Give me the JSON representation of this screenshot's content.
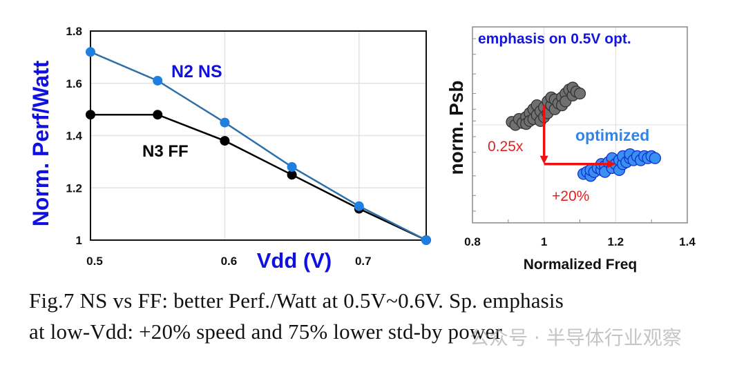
{
  "chart_data": [
    {
      "type": "line",
      "xlabel": "Vdd (V)",
      "ylabel": "Norm. Perf/Watt",
      "xlim": [
        0.5,
        0.75
      ],
      "ylim": [
        1,
        1.8
      ],
      "x_ticks": [
        "0.5",
        "0.6",
        "0.7"
      ],
      "y_ticks": [
        "1",
        "1.2",
        "1.4",
        "1.6",
        "1.8"
      ],
      "grid": true,
      "x": [
        0.5,
        0.55,
        0.6,
        0.65,
        0.7,
        0.75
      ],
      "series": [
        {
          "name": "N2 NS",
          "values": [
            1.72,
            1.61,
            1.45,
            1.28,
            1.13,
            1.0
          ],
          "color": "#1f7fe0",
          "line_color": "#2f6fa8"
        },
        {
          "name": "N3 FF",
          "values": [
            1.48,
            1.48,
            1.38,
            1.25,
            1.12,
            1.0
          ],
          "color": "#000000",
          "line_color": "#000000"
        }
      ],
      "label_colors": {
        "axis": "#1010e0"
      }
    },
    {
      "type": "scatter",
      "xlabel": "Normalized Freq",
      "ylabel": "norm. Psb",
      "xlim": [
        0.8,
        1.4
      ],
      "ylim": [
        0,
        1
      ],
      "x_ticks": [
        "0.8",
        "1",
        "1.2",
        "1.4"
      ],
      "grid": true,
      "title": "emphasis on 0.5V opt.",
      "series": [
        {
          "color": "#707070",
          "points": [
            [
              0.91,
              0.515
            ],
            [
              0.92,
              0.5
            ],
            [
              0.93,
              0.53
            ],
            [
              0.94,
              0.51
            ],
            [
              0.95,
              0.54
            ],
            [
              0.95,
              0.505
            ],
            [
              0.96,
              0.56
            ],
            [
              0.96,
              0.52
            ],
            [
              0.97,
              0.53
            ],
            [
              0.97,
              0.58
            ],
            [
              0.98,
              0.55
            ],
            [
              0.98,
              0.6
            ],
            [
              0.99,
              0.57
            ],
            [
              0.99,
              0.52
            ],
            [
              1.0,
              0.59
            ],
            [
              1.0,
              0.54
            ],
            [
              1.01,
              0.62
            ],
            [
              1.01,
              0.56
            ],
            [
              1.02,
              0.6
            ],
            [
              1.02,
              0.64
            ],
            [
              1.03,
              0.63
            ],
            [
              1.03,
              0.58
            ],
            [
              1.04,
              0.61
            ],
            [
              1.05,
              0.64
            ],
            [
              1.05,
              0.6
            ],
            [
              1.06,
              0.66
            ],
            [
              1.06,
              0.62
            ],
            [
              1.07,
              0.68
            ],
            [
              1.08,
              0.65
            ],
            [
              1.08,
              0.69
            ],
            [
              1.09,
              0.67
            ],
            [
              1.1,
              0.66
            ]
          ]
        },
        {
          "name": "optimized",
          "color": "#3a90f0",
          "points": [
            [
              1.11,
              0.25
            ],
            [
              1.12,
              0.26
            ],
            [
              1.13,
              0.24
            ],
            [
              1.13,
              0.27
            ],
            [
              1.14,
              0.26
            ],
            [
              1.15,
              0.28
            ],
            [
              1.16,
              0.27
            ],
            [
              1.16,
              0.3
            ],
            [
              1.17,
              0.29
            ],
            [
              1.17,
              0.26
            ],
            [
              1.18,
              0.31
            ],
            [
              1.19,
              0.28
            ],
            [
              1.19,
              0.33
            ],
            [
              1.2,
              0.3
            ],
            [
              1.21,
              0.32
            ],
            [
              1.21,
              0.27
            ],
            [
              1.22,
              0.3
            ],
            [
              1.22,
              0.34
            ],
            [
              1.23,
              0.31
            ],
            [
              1.24,
              0.33
            ],
            [
              1.24,
              0.35
            ],
            [
              1.25,
              0.32
            ],
            [
              1.26,
              0.34
            ],
            [
              1.27,
              0.32
            ],
            [
              1.28,
              0.34
            ],
            [
              1.29,
              0.33
            ],
            [
              1.3,
              0.34
            ],
            [
              1.31,
              0.33
            ]
          ]
        }
      ],
      "annotations": [
        {
          "text": "0.25x",
          "color": "#e02020"
        },
        {
          "text": "+20%",
          "color": "#e02020"
        }
      ],
      "arrows": {
        "color": "#ee1111",
        "vertical": {
          "x": 1.0,
          "from": 0.6,
          "to": 0.3
        },
        "horizontal": {
          "y": 0.3,
          "from": 1.0,
          "to": 1.2
        }
      }
    }
  ],
  "caption": {
    "line1": "Fig.7  NS vs FF: better Perf./Watt at 0.5V~0.6V.  Sp. emphasis",
    "line2": "at low-Vdd:  +20% speed and 75% lower std-by power"
  },
  "watermark": "公众号 · 半导体行业观察"
}
